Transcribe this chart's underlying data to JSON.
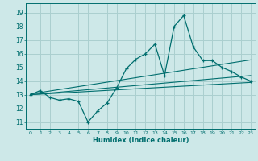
{
  "xlabel": "Humidex (Indice chaleur)",
  "bg_color": "#cde8e8",
  "line_color": "#006e6e",
  "grid_color": "#aacfcf",
  "ylim": [
    10.5,
    19.7
  ],
  "xlim": [
    -0.5,
    23.5
  ],
  "yticks": [
    11,
    12,
    13,
    14,
    15,
    16,
    17,
    18,
    19
  ],
  "xticks": [
    0,
    1,
    2,
    3,
    4,
    5,
    6,
    7,
    8,
    9,
    10,
    11,
    12,
    13,
    14,
    15,
    16,
    17,
    18,
    19,
    20,
    21,
    22,
    23
  ],
  "xtick_labels": [
    "0",
    "1",
    "2",
    "3",
    "4",
    "5",
    "6",
    "7",
    "8",
    "9",
    "10",
    "11",
    "12",
    "13",
    "14",
    "15",
    "16",
    "17",
    "18",
    "19",
    "20",
    "21",
    "22",
    "23"
  ],
  "main_line": {
    "x": [
      0,
      1,
      2,
      3,
      4,
      5,
      6,
      7,
      8,
      9,
      10,
      11,
      12,
      13,
      14,
      15,
      16,
      17,
      18,
      19,
      20,
      21,
      22,
      23
    ],
    "y": [
      13.0,
      13.3,
      12.8,
      12.6,
      12.7,
      12.5,
      11.0,
      11.8,
      12.4,
      13.5,
      14.9,
      15.6,
      16.0,
      16.7,
      14.4,
      18.0,
      18.8,
      16.5,
      15.5,
      15.5,
      15.0,
      14.7,
      14.3,
      14.0
    ]
  },
  "trend_lines": [
    {
      "x": [
        0,
        23
      ],
      "y": [
        13.0,
        13.9
      ]
    },
    {
      "x": [
        0,
        23
      ],
      "y": [
        13.0,
        14.4
      ]
    },
    {
      "x": [
        0,
        23
      ],
      "y": [
        13.05,
        15.55
      ]
    }
  ]
}
